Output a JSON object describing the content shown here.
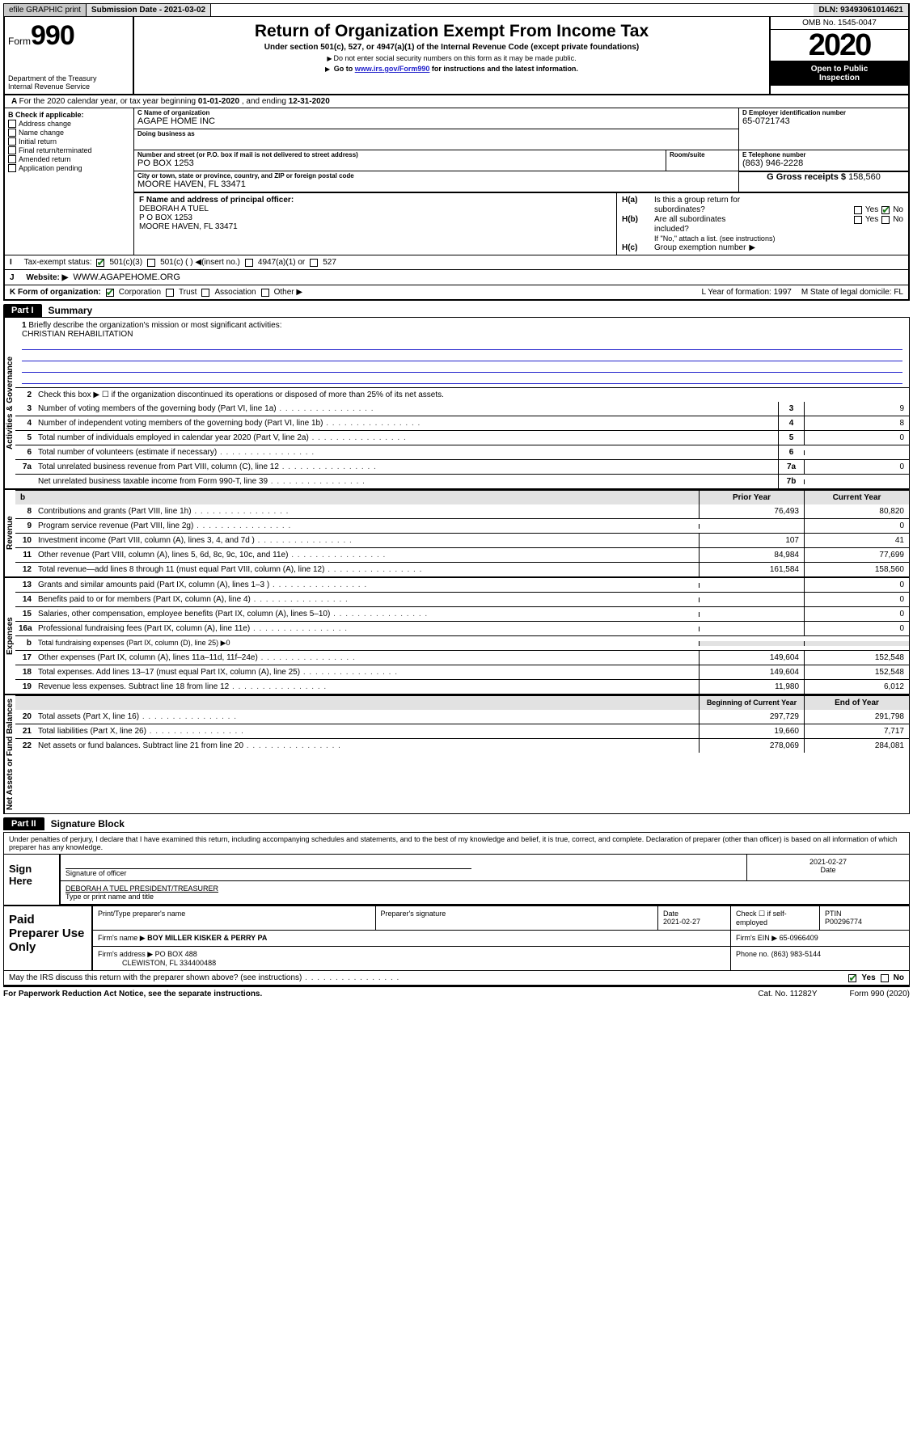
{
  "topbar": {
    "efile": "efile GRAPHIC print",
    "sub_label": "Submission Date - 2021-03-02",
    "dln": "DLN: 93493061014621"
  },
  "header": {
    "form": "Form",
    "f990": "990",
    "dept": "Department of the Treasury",
    "irs": "Internal Revenue Service",
    "title": "Return of Organization Exempt From Income Tax",
    "subtitle": "Under section 501(c), 527, or 4947(a)(1) of the Internal Revenue Code (except private foundations)",
    "note1": "Do not enter social security numbers on this form as it may be made public.",
    "note2_pre": "Go to ",
    "note2_link": "www.irs.gov/Form990",
    "note2_post": " for instructions and the latest information.",
    "omb": "OMB No. 1545-0047",
    "year": "2020",
    "inspect1": "Open to Public",
    "inspect2": "Inspection"
  },
  "rowA": {
    "pre": "For the 2020 calendar year, or tax year beginning ",
    "beg": "01-01-2020",
    "mid": " , and ending ",
    "end": "12-31-2020"
  },
  "colB": {
    "lbl": "B Check if applicable:",
    "items": [
      "Address change",
      "Name change",
      "Initial return",
      "Final return/terminated",
      "Amended return",
      "Application pending"
    ]
  },
  "colC": {
    "name_lbl": "C Name of organization",
    "name": "AGAPE HOME INC",
    "dba_lbl": "Doing business as",
    "addr_lbl": "Number and street (or P.O. box if mail is not delivered to street address)",
    "addr": "PO BOX 1253",
    "room_lbl": "Room/suite",
    "city_lbl": "City or town, state or province, country, and ZIP or foreign postal code",
    "city": "MOORE HAVEN, FL  33471",
    "f_lbl": "F Name and address of principal officer:",
    "f_name": "DEBORAH A TUEL",
    "f_addr1": "P O BOX 1253",
    "f_addr2": "MOORE HAVEN, FL  33471"
  },
  "colD": {
    "d_lbl": "D Employer identification number",
    "ein": "65-0721743",
    "e_lbl": "E Telephone number",
    "phone": "(863) 946-2228",
    "g_lbl": "G Gross receipts $ ",
    "g": "158,560"
  },
  "colH": {
    "ha1": "Is this a group return for",
    "ha2": "subordinates?",
    "hb1": "Are all subordinates",
    "hb2": "included?",
    "hnote": "If \"No,\" attach a list. (see instructions)",
    "hc": "Group exemption number"
  },
  "status": {
    "label": "Tax-exempt status:",
    "o501c3": "501(c)(3)",
    "o501c": "501(c) (   )  ◀(insert no.)",
    "o4947": "4947(a)(1) or",
    "o527": "527"
  },
  "website": {
    "lbl": "Website: ▶",
    "val": "WWW.AGAPEHOME.ORG"
  },
  "rowK": {
    "lbl": "K Form of organization:",
    "corp": "Corporation",
    "trust": "Trust",
    "assoc": "Association",
    "other": "Other ▶",
    "L": "L Year of formation: 1997",
    "M": "M State of legal domicile: FL"
  },
  "part1": {
    "tab": "Part I",
    "title": "Summary"
  },
  "summary": {
    "sidetabs": [
      "Activities & Governance",
      "Revenue",
      "Expenses",
      "Net Assets or Fund Balances"
    ],
    "l1": "Briefly describe the organization's mission or most significant activities:",
    "mission": "CHRISTIAN REHABILITATION",
    "l2": "Check this box ▶ ☐  if the organization discontinued its operations or disposed of more than 25% of its net assets.",
    "rows_a": [
      {
        "n": "3",
        "t": "Number of voting members of the governing body (Part VI, line 1a)",
        "box": "3",
        "v": "9"
      },
      {
        "n": "4",
        "t": "Number of independent voting members of the governing body (Part VI, line 1b)",
        "box": "4",
        "v": "8"
      },
      {
        "n": "5",
        "t": "Total number of individuals employed in calendar year 2020 (Part V, line 2a)",
        "box": "5",
        "v": "0"
      },
      {
        "n": "6",
        "t": "Total number of volunteers (estimate if necessary)",
        "box": "6",
        "v": ""
      },
      {
        "n": "7a",
        "t": "Total unrelated business revenue from Part VIII, column (C), line 12",
        "box": "7a",
        "v": "0"
      },
      {
        "n": "",
        "t": "Net unrelated business taxable income from Form 990-T, line 39",
        "box": "7b",
        "v": ""
      }
    ],
    "hdr_prior": "Prior Year",
    "hdr_curr": "Current Year",
    "rows_rev": [
      {
        "n": "8",
        "t": "Contributions and grants (Part VIII, line 1h)",
        "p": "76,493",
        "c": "80,820"
      },
      {
        "n": "9",
        "t": "Program service revenue (Part VIII, line 2g)",
        "p": "",
        "c": "0"
      },
      {
        "n": "10",
        "t": "Investment income (Part VIII, column (A), lines 3, 4, and 7d )",
        "p": "107",
        "c": "41"
      },
      {
        "n": "11",
        "t": "Other revenue (Part VIII, column (A), lines 5, 6d, 8c, 9c, 10c, and 11e)",
        "p": "84,984",
        "c": "77,699"
      },
      {
        "n": "12",
        "t": "Total revenue—add lines 8 through 11 (must equal Part VIII, column (A), line 12)",
        "p": "161,584",
        "c": "158,560"
      }
    ],
    "rows_exp": [
      {
        "n": "13",
        "t": "Grants and similar amounts paid (Part IX, column (A), lines 1–3 )",
        "p": "",
        "c": "0"
      },
      {
        "n": "14",
        "t": "Benefits paid to or for members (Part IX, column (A), line 4)",
        "p": "",
        "c": "0"
      },
      {
        "n": "15",
        "t": "Salaries, other compensation, employee benefits (Part IX, column (A), lines 5–10)",
        "p": "",
        "c": "0"
      },
      {
        "n": "16a",
        "t": "Professional fundraising fees (Part IX, column (A), line 11e)",
        "p": "",
        "c": "0"
      },
      {
        "n": "b",
        "t": "Total fundraising expenses (Part IX, column (D), line 25) ▶0",
        "p": "__gray__",
        "c": "__gray__"
      },
      {
        "n": "17",
        "t": "Other expenses (Part IX, column (A), lines 11a–11d, 11f–24e)",
        "p": "149,604",
        "c": "152,548"
      },
      {
        "n": "18",
        "t": "Total expenses. Add lines 13–17 (must equal Part IX, column (A), line 25)",
        "p": "149,604",
        "c": "152,548"
      },
      {
        "n": "19",
        "t": "Revenue less expenses. Subtract line 18 from line 12",
        "p": "11,980",
        "c": "6,012"
      }
    ],
    "hdr_bcy": "Beginning of Current Year",
    "hdr_eoy": "End of Year",
    "rows_net": [
      {
        "n": "20",
        "t": "Total assets (Part X, line 16)",
        "p": "297,729",
        "c": "291,798"
      },
      {
        "n": "21",
        "t": "Total liabilities (Part X, line 26)",
        "p": "19,660",
        "c": "7,717"
      },
      {
        "n": "22",
        "t": "Net assets or fund balances. Subtract line 21 from line 20",
        "p": "278,069",
        "c": "284,081"
      }
    ]
  },
  "part2": {
    "tab": "Part II",
    "title": "Signature Block"
  },
  "sig": {
    "text": "Under penalties of perjury, I declare that I have examined this return, including accompanying schedules and statements, and to the best of my knowledge and belief, it is true, correct, and complete. Declaration of preparer (other than officer) is based on all information of which preparer has any knowledge.",
    "sign_here": "Sign Here",
    "sig_lbl": "Signature of officer",
    "date_lbl": "Date",
    "date": "2021-02-27",
    "name_title": "DEBORAH A TUEL PRESIDENT/TREASURER",
    "name_lbl": "Type or print name and title"
  },
  "paid": {
    "lbl": "Paid Preparer Use Only",
    "h1": "Print/Type preparer's name",
    "h2": "Preparer's signature",
    "h3": "Date",
    "date": "2021-02-27",
    "h4": "Check ☐ if self-employed",
    "h5": "PTIN",
    "ptin": "P00296774",
    "firm_lbl": "Firm's name   ▶",
    "firm": "BOY MILLER KISKER & PERRY PA",
    "ein_lbl": "Firm's EIN ▶",
    "ein": "65-0966409",
    "addr_lbl": "Firm's address ▶",
    "addr1": "PO BOX 488",
    "addr2": "CLEWISTON, FL  334400488",
    "ph_lbl": "Phone no.",
    "ph": "(863) 983-5144"
  },
  "discuss": {
    "q": "May the IRS discuss this return with the preparer shown above? (see instructions)",
    "yes": "Yes",
    "no": "No"
  },
  "footer": {
    "l": "For Paperwork Reduction Act Notice, see the separate instructions.",
    "m": "Cat. No. 11282Y",
    "r": "Form 990 (2020)"
  }
}
